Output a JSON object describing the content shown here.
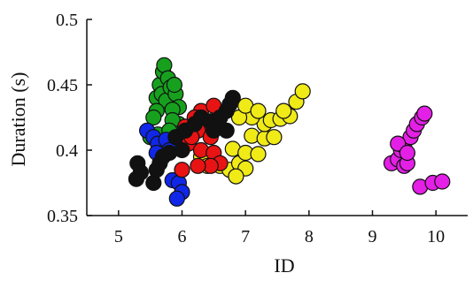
{
  "chart_data": {
    "type": "scatter",
    "title": "",
    "xlabel": "ID",
    "ylabel": "Duration (s)",
    "xlim": [
      4.5,
      10.5
    ],
    "ylim": [
      0.35,
      0.5
    ],
    "xticks": [
      "5",
      "6",
      "7",
      "8",
      "9",
      "10"
    ],
    "yticks": [
      "0.35",
      "0.4",
      "0.45",
      "0.5"
    ],
    "grid": false,
    "legend": "none",
    "marker_edge_color": "#111111",
    "series": [
      {
        "color": "#f0ea17",
        "points": [
          [
            6.5,
            0.393
          ],
          [
            6.6,
            0.388
          ],
          [
            6.75,
            0.385
          ],
          [
            6.9,
            0.39
          ],
          [
            6.8,
            0.401
          ],
          [
            7.0,
            0.398
          ],
          [
            7.2,
            0.397
          ],
          [
            7.1,
            0.411
          ],
          [
            7.3,
            0.409
          ],
          [
            7.45,
            0.41
          ],
          [
            7.3,
            0.42
          ],
          [
            7.4,
            0.423
          ],
          [
            7.55,
            0.424
          ],
          [
            7.7,
            0.426
          ],
          [
            7.8,
            0.437
          ],
          [
            7.9,
            0.445
          ],
          [
            7.6,
            0.43
          ],
          [
            7.1,
            0.425
          ],
          [
            6.9,
            0.425
          ],
          [
            7.0,
            0.434
          ],
          [
            7.2,
            0.43
          ],
          [
            6.3,
            0.395
          ],
          [
            6.4,
            0.388
          ],
          [
            7.0,
            0.386
          ],
          [
            6.85,
            0.38
          ]
        ]
      },
      {
        "color": "#16a01e",
        "points": [
          [
            5.65,
            0.45
          ],
          [
            5.7,
            0.46
          ],
          [
            5.72,
            0.465
          ],
          [
            5.78,
            0.455
          ],
          [
            5.6,
            0.44
          ],
          [
            5.68,
            0.443
          ],
          [
            5.75,
            0.438
          ],
          [
            5.82,
            0.448
          ],
          [
            5.9,
            0.443
          ],
          [
            5.88,
            0.45
          ],
          [
            5.95,
            0.433
          ],
          [
            5.85,
            0.431
          ],
          [
            5.6,
            0.43
          ],
          [
            5.55,
            0.425
          ],
          [
            5.95,
            0.42
          ],
          [
            5.85,
            0.423
          ],
          [
            5.5,
            0.41
          ],
          [
            5.62,
            0.412
          ],
          [
            5.92,
            0.405
          ],
          [
            5.8,
            0.415
          ]
        ]
      },
      {
        "color": "#1027e8",
        "points": [
          [
            5.45,
            0.415
          ],
          [
            5.55,
            0.41
          ],
          [
            5.62,
            0.405
          ],
          [
            5.75,
            0.408
          ],
          [
            5.8,
            0.4
          ],
          [
            5.85,
            0.377
          ],
          [
            5.95,
            0.375
          ],
          [
            6.0,
            0.368
          ],
          [
            5.92,
            0.363
          ],
          [
            5.6,
            0.398
          ]
        ]
      },
      {
        "color": "#e81313",
        "points": [
          [
            6.3,
            0.43
          ],
          [
            6.5,
            0.434
          ],
          [
            6.2,
            0.425
          ],
          [
            6.4,
            0.42
          ],
          [
            6.55,
            0.42
          ],
          [
            6.25,
            0.415
          ],
          [
            6.45,
            0.41
          ],
          [
            6.1,
            0.405
          ],
          [
            6.3,
            0.4
          ],
          [
            6.5,
            0.398
          ],
          [
            6.6,
            0.39
          ],
          [
            6.45,
            0.388
          ],
          [
            6.25,
            0.388
          ],
          [
            6.0,
            0.385
          ],
          [
            6.15,
            0.41
          ],
          [
            6.05,
            0.418
          ]
        ]
      },
      {
        "color": "#111111",
        "points": [
          [
            5.3,
            0.39
          ],
          [
            5.35,
            0.383
          ],
          [
            5.28,
            0.378
          ],
          [
            5.55,
            0.375
          ],
          [
            5.6,
            0.385
          ],
          [
            5.65,
            0.39
          ],
          [
            5.7,
            0.395
          ],
          [
            5.8,
            0.398
          ],
          [
            6.0,
            0.4
          ],
          [
            5.9,
            0.41
          ],
          [
            6.05,
            0.415
          ],
          [
            6.2,
            0.42
          ],
          [
            6.3,
            0.425
          ],
          [
            6.45,
            0.422
          ],
          [
            6.6,
            0.425
          ],
          [
            6.7,
            0.43
          ],
          [
            6.8,
            0.44
          ],
          [
            6.75,
            0.435
          ],
          [
            6.5,
            0.415
          ],
          [
            6.7,
            0.415
          ]
        ]
      },
      {
        "color": "#e41fe6",
        "points": [
          [
            9.3,
            0.39
          ],
          [
            9.4,
            0.393
          ],
          [
            9.5,
            0.388
          ],
          [
            9.55,
            0.39
          ],
          [
            9.45,
            0.4
          ],
          [
            9.5,
            0.403
          ],
          [
            9.6,
            0.41
          ],
          [
            9.65,
            0.415
          ],
          [
            9.7,
            0.42
          ],
          [
            9.78,
            0.425
          ],
          [
            9.82,
            0.428
          ],
          [
            9.75,
            0.372
          ],
          [
            9.95,
            0.375
          ],
          [
            10.1,
            0.376
          ],
          [
            9.4,
            0.405
          ],
          [
            9.55,
            0.398
          ]
        ]
      }
    ]
  }
}
